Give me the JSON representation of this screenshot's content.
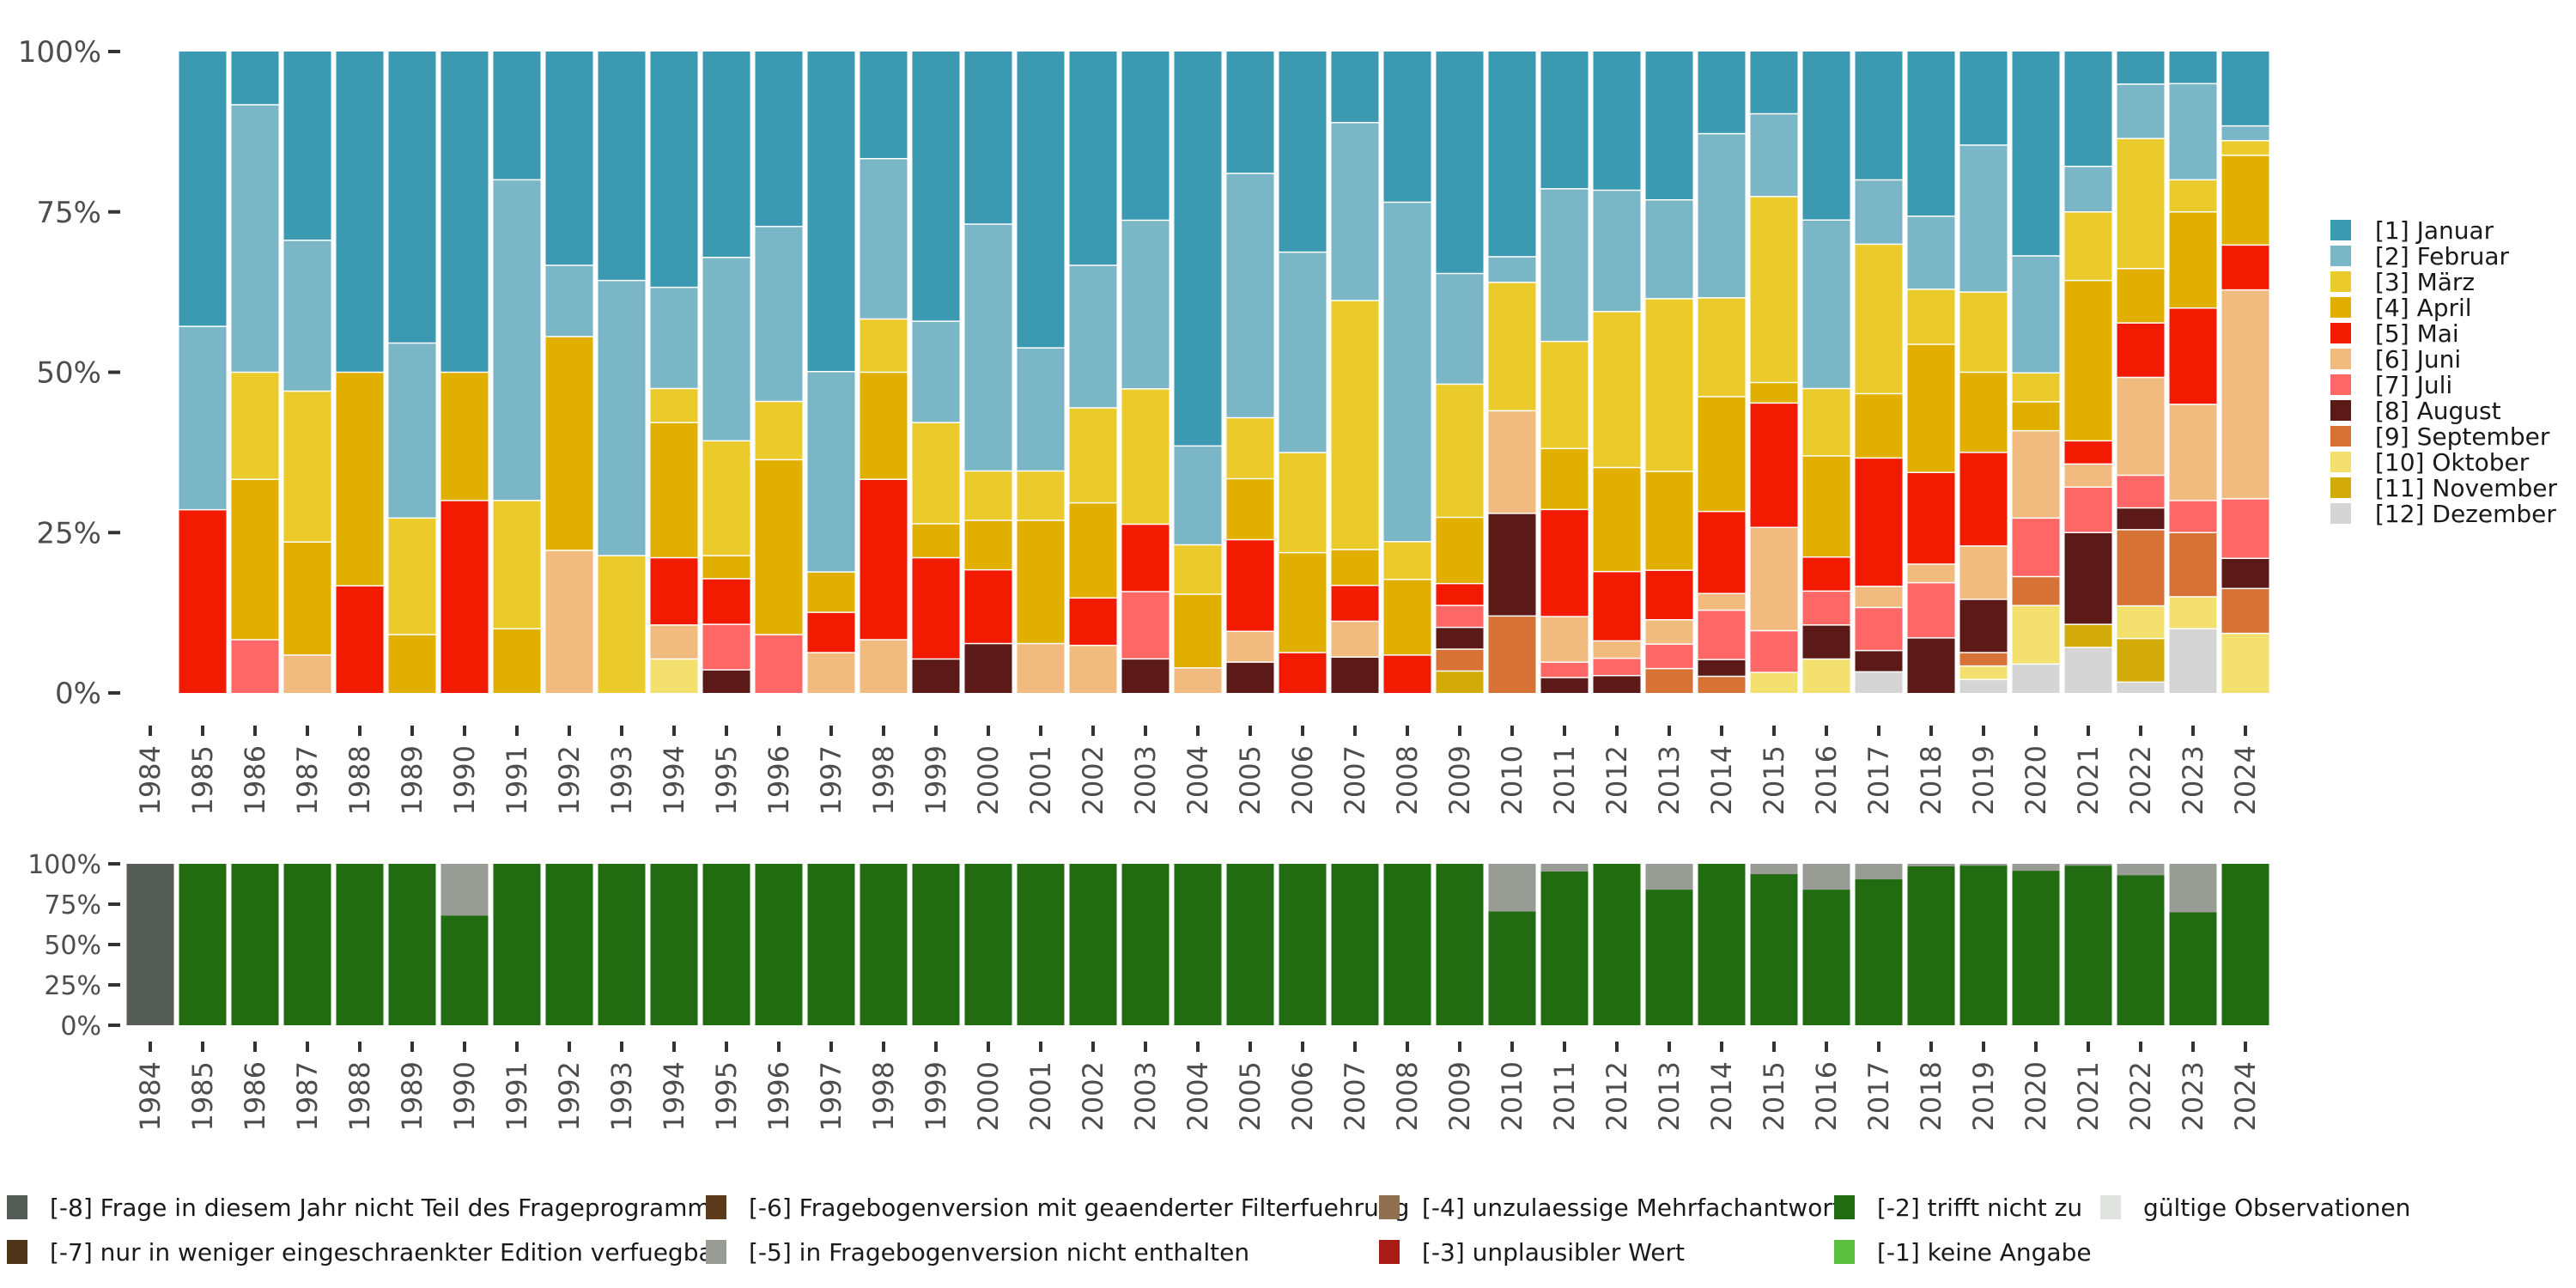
{
  "chart_data": [
    {
      "type": "bar",
      "stacked": true,
      "title": "",
      "xlabel": "",
      "ylabel": "",
      "ylim": [
        0,
        100
      ],
      "y_ticks": [
        "0%",
        "25%",
        "50%",
        "75%",
        "100%"
      ],
      "categories": [
        "1984",
        "1985",
        "1986",
        "1987",
        "1988",
        "1989",
        "1990",
        "1991",
        "1992",
        "1993",
        "1994",
        "1995",
        "1996",
        "1997",
        "1998",
        "1999",
        "2000",
        "2001",
        "2002",
        "2003",
        "2004",
        "2005",
        "2006",
        "2007",
        "2008",
        "2009",
        "2010",
        "2011",
        "2012",
        "2013",
        "2014",
        "2015",
        "2016",
        "2017",
        "2018",
        "2019",
        "2020",
        "2021",
        "2022",
        "2023",
        "2024"
      ],
      "legend_position": "right",
      "legend": [
        {
          "label": "[1] Januar",
          "color": "#3B99B1"
        },
        {
          "label": "[2] Februar",
          "color": "#7AB6C6"
        },
        {
          "label": "[3] März",
          "color": "#EACB2B"
        },
        {
          "label": "[4] April",
          "color": "#E0AF00"
        },
        {
          "label": "[5] Mai",
          "color": "#F21A00"
        },
        {
          "label": "[6] Juni",
          "color": "#F1BB7F"
        },
        {
          "label": "[7] Juli",
          "color": "#FF6666"
        },
        {
          "label": "[8] August",
          "color": "#5B1A18"
        },
        {
          "label": "[9] September",
          "color": "#D67236"
        },
        {
          "label": "[10] Oktober",
          "color": "#F3E06F"
        },
        {
          "label": "[11] November",
          "color": "#D2AB09"
        },
        {
          "label": "[12] Dezember",
          "color": "#D5D5D5"
        }
      ],
      "series_order_bottom_to_top": "12..1 (Januar on top)",
      "values_percent": {
        "1984": null,
        "1985": [
          42.9,
          28.6,
          0,
          0,
          28.6,
          0,
          0,
          0,
          0,
          0,
          0,
          0
        ],
        "1986": [
          8.3,
          41.7,
          16.7,
          25.0,
          0,
          0,
          8.3,
          0,
          0,
          0,
          0,
          0
        ],
        "1987": [
          29.4,
          23.5,
          23.5,
          17.6,
          0,
          5.9,
          0,
          0,
          0,
          0,
          0,
          0
        ],
        "1988": [
          50.0,
          0,
          0,
          33.3,
          16.7,
          0,
          0,
          0,
          0,
          0,
          0,
          0
        ],
        "1989": [
          45.5,
          27.3,
          18.2,
          9.1,
          0,
          0,
          0,
          0,
          0,
          0,
          0,
          0
        ],
        "1990": [
          50.0,
          0,
          0,
          20.0,
          30.0,
          0,
          0,
          0,
          0,
          0,
          0,
          0
        ],
        "1991": [
          20.0,
          50.0,
          20.0,
          10.0,
          0,
          0,
          0,
          0,
          0,
          0,
          0,
          0
        ],
        "1992": [
          33.3,
          11.1,
          0,
          33.3,
          0,
          22.2,
          0,
          0,
          0,
          0,
          0,
          0
        ],
        "1993": [
          35.7,
          42.9,
          21.4,
          0,
          0,
          0,
          0,
          0,
          0,
          0,
          0,
          0
        ],
        "1994": [
          36.8,
          15.8,
          5.3,
          21.1,
          10.5,
          5.3,
          0,
          0,
          0,
          5.3,
          0,
          0
        ],
        "1995": [
          32.1,
          28.6,
          17.9,
          3.6,
          7.1,
          0,
          7.1,
          3.6,
          0,
          0,
          0,
          0
        ],
        "1996": [
          27.3,
          27.3,
          9.1,
          27.3,
          0,
          0,
          9.1,
          0,
          0,
          0,
          0,
          0
        ],
        "1997": [
          50.0,
          31.3,
          0,
          6.3,
          6.3,
          6.3,
          0,
          0,
          0,
          0,
          0,
          0
        ],
        "1998": [
          16.7,
          25.0,
          8.3,
          16.7,
          25.0,
          8.3,
          0,
          0,
          0,
          0,
          0,
          0
        ],
        "1999": [
          42.1,
          15.8,
          15.8,
          5.3,
          15.8,
          0,
          0,
          5.3,
          0,
          0,
          0,
          0
        ],
        "2000": [
          26.9,
          38.5,
          7.7,
          7.7,
          11.5,
          0,
          0,
          7.7,
          0,
          0,
          0,
          0
        ],
        "2001": [
          46.2,
          19.2,
          7.7,
          19.2,
          0,
          7.7,
          0,
          0,
          0,
          0,
          0,
          0
        ],
        "2002": [
          33.3,
          22.2,
          14.8,
          14.8,
          7.4,
          7.4,
          0,
          0,
          0,
          0,
          0,
          0
        ],
        "2003": [
          26.3,
          26.3,
          21.1,
          0,
          10.5,
          0,
          10.5,
          5.3,
          0,
          0,
          0,
          0
        ],
        "2004": [
          61.5,
          15.4,
          7.7,
          11.5,
          0,
          3.9,
          0,
          0,
          0,
          0,
          0,
          0
        ],
        "2005": [
          19.0,
          38.1,
          9.5,
          9.5,
          14.3,
          4.8,
          0,
          4.8,
          0,
          0,
          0,
          0
        ],
        "2006": [
          31.3,
          31.3,
          15.6,
          15.6,
          6.3,
          0,
          0,
          0,
          0,
          0,
          0,
          0
        ],
        "2007": [
          11.1,
          27.8,
          38.9,
          5.6,
          5.6,
          5.6,
          0,
          5.6,
          0,
          0,
          0,
          0
        ],
        "2008": [
          23.5,
          52.9,
          5.9,
          11.8,
          5.9,
          0,
          0,
          0,
          0,
          0,
          0,
          0
        ],
        "2009": [
          34.5,
          17.2,
          20.7,
          10.3,
          3.4,
          0,
          3.4,
          3.4,
          3.4,
          0,
          3.4,
          0
        ],
        "2010": [
          32.0,
          4.0,
          20.0,
          0,
          0,
          16.0,
          0,
          16.0,
          12.0,
          0,
          0,
          0
        ],
        "2011": [
          21.4,
          23.8,
          16.7,
          9.5,
          16.7,
          7.1,
          2.4,
          2.4,
          0,
          0,
          0,
          0
        ],
        "2012": [
          21.6,
          18.9,
          24.3,
          16.2,
          10.8,
          2.7,
          2.7,
          2.7,
          0,
          0,
          0,
          0
        ],
        "2013": [
          23.1,
          15.4,
          26.9,
          15.4,
          7.7,
          3.8,
          3.8,
          0,
          3.8,
          0,
          0,
          0
        ],
        "2014": [
          12.8,
          25.6,
          15.4,
          17.9,
          12.8,
          2.6,
          7.7,
          2.6,
          2.6,
          0,
          0,
          0
        ],
        "2015": [
          9.7,
          12.9,
          29.0,
          3.2,
          19.4,
          16.1,
          6.5,
          0,
          0,
          3.2,
          0,
          0
        ],
        "2016": [
          26.3,
          26.3,
          10.5,
          15.8,
          5.3,
          0,
          5.3,
          5.3,
          0,
          5.3,
          0,
          0
        ],
        "2017": [
          20.0,
          10.0,
          23.3,
          10.0,
          20.0,
          3.3,
          6.7,
          3.3,
          0,
          0,
          0,
          3.3
        ],
        "2018": [
          25.7,
          11.4,
          8.6,
          20.0,
          14.3,
          2.9,
          8.6,
          8.6,
          0,
          0,
          0,
          0
        ],
        "2019": [
          14.6,
          22.9,
          12.5,
          12.5,
          14.6,
          8.3,
          0,
          8.3,
          2.1,
          2.1,
          0,
          2.1
        ],
        "2020": [
          31.8,
          18.2,
          4.5,
          4.5,
          0,
          13.6,
          9.1,
          0,
          4.5,
          9.1,
          0,
          4.5
        ],
        "2021": [
          17.9,
          7.1,
          10.7,
          25.0,
          3.6,
          3.6,
          7.1,
          14.3,
          0,
          0,
          3.6,
          7.1
        ],
        "2022": [
          5.1,
          8.5,
          20.3,
          8.5,
          8.5,
          15.3,
          5.1,
          3.4,
          11.9,
          5.1,
          6.8,
          1.7
        ],
        "2023": [
          5.0,
          15.0,
          5.0,
          15.0,
          15.0,
          15.0,
          5.0,
          0,
          10.0,
          5.0,
          0,
          10.0
        ],
        "2024": [
          11.6,
          2.3,
          2.3,
          14.0,
          7.0,
          32.6,
          9.3,
          4.7,
          7.0,
          9.3,
          0,
          0
        ]
      }
    },
    {
      "type": "bar",
      "stacked": true,
      "title": "",
      "ylim": [
        0,
        100
      ],
      "y_ticks": [
        "0%",
        "25%",
        "50%",
        "75%",
        "100%"
      ],
      "categories": [
        "1984",
        "1985",
        "1986",
        "1987",
        "1988",
        "1989",
        "1990",
        "1991",
        "1992",
        "1993",
        "1994",
        "1995",
        "1996",
        "1997",
        "1998",
        "1999",
        "2000",
        "2001",
        "2002",
        "2003",
        "2004",
        "2005",
        "2006",
        "2007",
        "2008",
        "2009",
        "2010",
        "2011",
        "2012",
        "2013",
        "2014",
        "2015",
        "2016",
        "2017",
        "2018",
        "2019",
        "2020",
        "2021",
        "2022",
        "2023",
        "2024"
      ],
      "legend_position": "bottom",
      "legend": [
        {
          "label": "[-8] Frage in diesem Jahr nicht Teil des Frageprogramms",
          "color": "#555B55"
        },
        {
          "label": "[-7] nur in weniger eingeschraenkter Edition verfuegbar",
          "color": "#4E3419"
        },
        {
          "label": "[-6] Fragebogenversion mit geaenderter Filterfuehrung",
          "color": "#5C3A1A"
        },
        {
          "label": "[-5] in Fragebogenversion nicht enthalten",
          "color": "#989C94"
        },
        {
          "label": "[-4] unzulaessige Mehrfachantwort",
          "color": "#906F4E"
        },
        {
          "label": "[-3] unplausibler Wert",
          "color": "#A81C17"
        },
        {
          "label": "[-2] trifft nicht zu",
          "color": "#216B11"
        },
        {
          "label": "[-1] keine Angabe",
          "color": "#5ABF3F"
        },
        {
          "label": "gültige Observationen",
          "color": "#E0E3DF"
        }
      ],
      "series": [
        {
          "name": "[-8] Frage in diesem Jahr nicht Teil des Frageprogramms",
          "values": [
            100,
            0,
            0,
            0,
            0,
            0,
            0,
            0,
            0,
            0,
            0,
            0,
            0,
            0,
            0,
            0,
            0,
            0,
            0,
            0,
            0,
            0,
            0,
            0,
            0,
            0,
            0,
            0,
            0,
            0,
            0,
            0,
            0,
            0,
            0,
            0,
            0,
            0,
            0,
            0,
            0
          ]
        },
        {
          "name": "[-5] in Fragebogenversion nicht enthalten",
          "values": [
            0,
            0,
            0,
            0,
            0,
            0,
            32,
            0,
            0,
            0,
            0,
            0,
            0,
            0,
            0,
            0,
            0,
            0,
            0,
            0,
            0,
            0,
            0,
            0,
            0,
            0,
            29.4,
            4.8,
            0,
            16.0,
            0,
            6.4,
            16.0,
            9.6,
            1.6,
            1.1,
            4.3,
            1.1,
            7.0,
            29.9,
            0
          ]
        },
        {
          "name": "[-2] trifft nicht zu",
          "values": [
            0,
            100,
            100,
            100,
            100,
            100,
            68,
            100,
            100,
            100,
            100,
            100,
            100,
            100,
            100,
            100,
            100,
            100,
            100,
            100,
            100,
            100,
            100,
            100,
            100,
            100,
            70.6,
            95.2,
            100,
            84.0,
            100,
            93.6,
            84.0,
            90.4,
            98.4,
            98.9,
            95.7,
            98.9,
            93.0,
            70.1,
            100
          ]
        }
      ]
    }
  ]
}
